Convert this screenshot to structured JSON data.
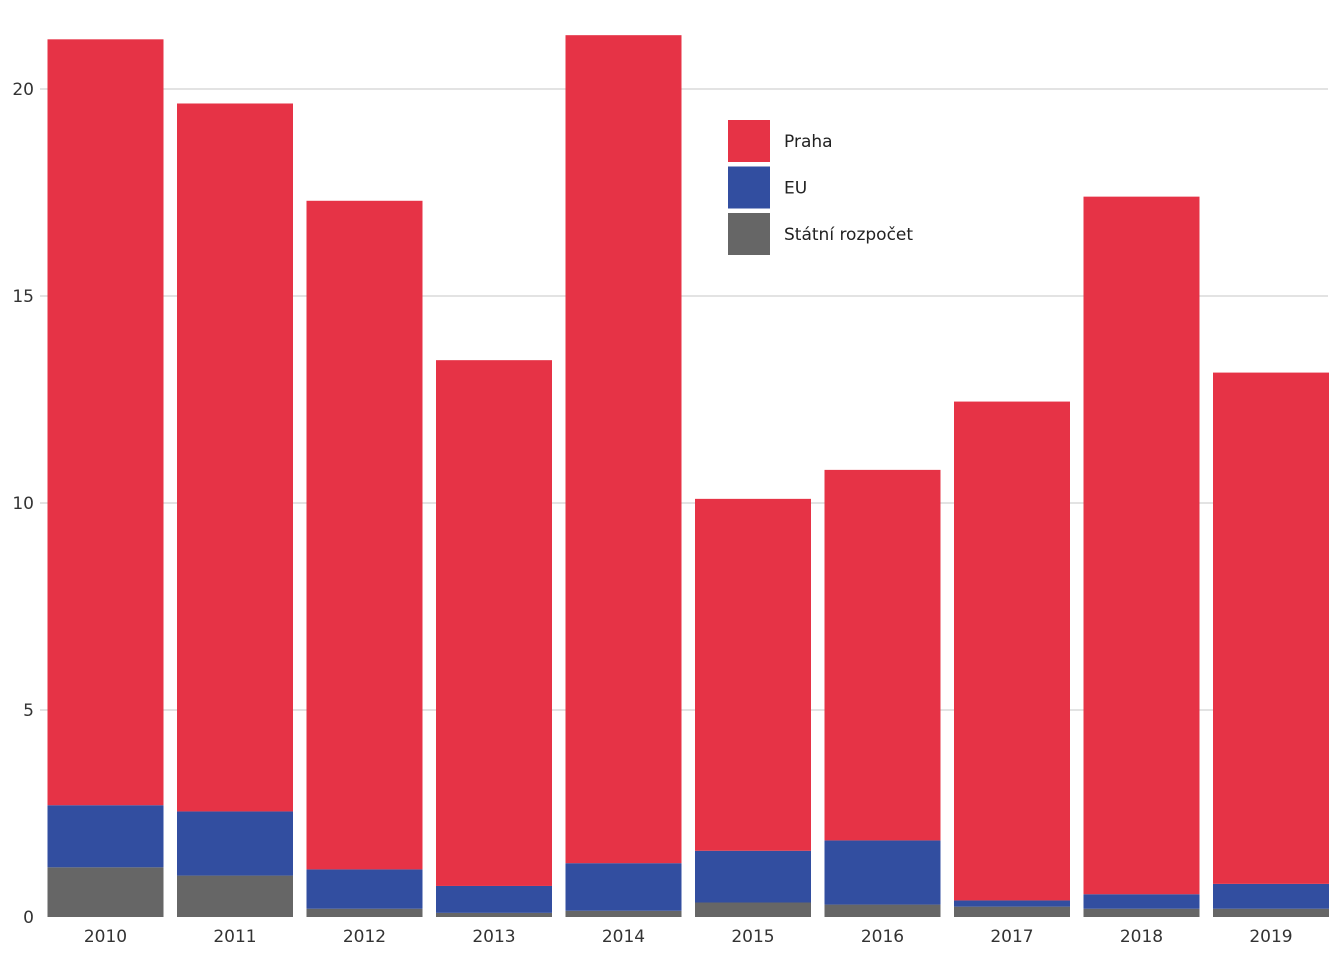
{
  "chart_data": {
    "type": "bar",
    "stacked": true,
    "title": "",
    "xlabel": "",
    "ylabel": "",
    "categories": [
      "2010",
      "2011",
      "2012",
      "2013",
      "2014",
      "2015",
      "2016",
      "2017",
      "2018",
      "2019"
    ],
    "series": [
      {
        "name": "Státní rozpočet",
        "color": "#666666",
        "values": [
          1.2,
          1.0,
          0.2,
          0.1,
          0.15,
          0.35,
          0.3,
          0.25,
          0.2,
          0.2
        ]
      },
      {
        "name": "EU",
        "color": "#324ea0",
        "values": [
          1.5,
          1.55,
          0.95,
          0.65,
          1.15,
          1.25,
          1.55,
          0.15,
          0.35,
          0.6
        ]
      },
      {
        "name": "Praha",
        "color": "#e63346",
        "values": [
          18.5,
          17.1,
          16.15,
          12.7,
          20.0,
          8.5,
          8.95,
          12.05,
          16.85,
          12.35
        ]
      }
    ],
    "ylim": [
      0,
      21.5
    ],
    "yticks": [
      0,
      5,
      10,
      15,
      20
    ],
    "grid": "horizontal",
    "legend": {
      "placement": "top-center",
      "order": [
        "Praha",
        "EU",
        "Státní rozpočet"
      ]
    }
  }
}
